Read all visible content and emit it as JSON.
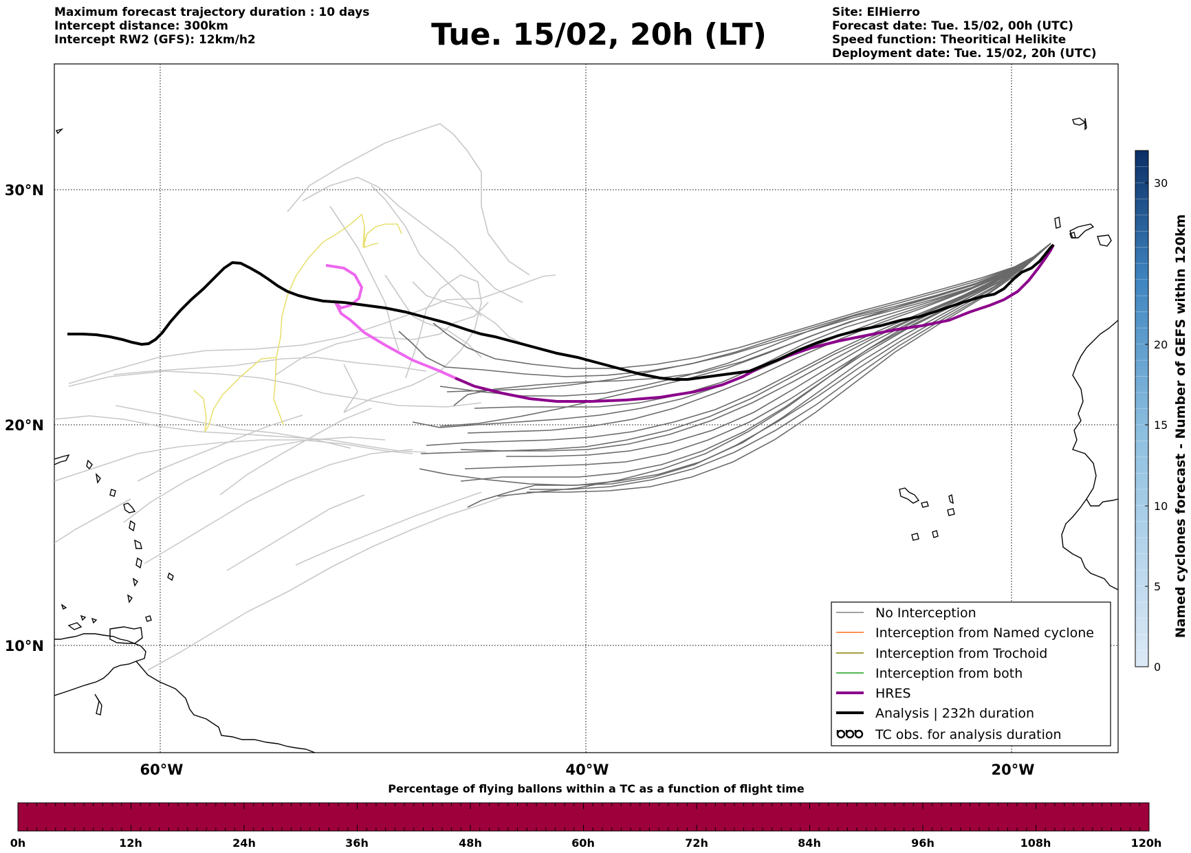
{
  "header": {
    "left_lines": [
      "Maximum forecast trajectory duration : 10 days",
      "Intercept distance: 300km",
      "Intercept RW2 (GFS):  12km/h2"
    ],
    "title": "Tue. 15/02, 20h (LT)",
    "right_lines": [
      "Site: ElHierro",
      "Forecast date: Tue. 15/02, 00h (UTC)",
      "Speed function: Theoritical Helikite",
      "Deployment date: Tue. 15/02, 20h (UTC)"
    ]
  },
  "map": {
    "lon_labels": [
      "60°W",
      "40°W",
      "20°W"
    ],
    "lat_labels": [
      "30°N",
      "20°N",
      "10°N"
    ]
  },
  "legend": {
    "items": [
      {
        "label": "No Interception",
        "color": "#808080",
        "style": "thin"
      },
      {
        "label": "Interception from Named cyclone",
        "color": "#ff6a1a",
        "style": "thin"
      },
      {
        "label": "Interception from Trochoid",
        "color": "#808000",
        "style": "thin"
      },
      {
        "label": "Interception from both",
        "color": "#1aa01a",
        "style": "thin"
      },
      {
        "label": "HRES",
        "color": "#8b008b",
        "style": "thick"
      },
      {
        "label": "Analysis | 232h duration",
        "color": "#000000",
        "style": "thick"
      },
      {
        "label": "TC obs. for analysis duration",
        "color": "#000000",
        "style": "symbol"
      }
    ]
  },
  "colorbar": {
    "label": "Named cyclones forecast - Number of GEFS within 120km",
    "ticks": [
      "0",
      "5",
      "10",
      "15",
      "20",
      "30"
    ],
    "top_color": "#0b2f66",
    "bottom_color": "#dce9f6"
  },
  "timebar": {
    "title": "Percentage of flying ballons within a TC as a function of flight time",
    "ticks": [
      "0h",
      "12h",
      "24h",
      "36h",
      "48h",
      "60h",
      "72h",
      "84h",
      "96h",
      "108h",
      "120h"
    ],
    "fill_color": "#9e003c"
  },
  "colors": {
    "ensemble": "#696969",
    "outer_ensemble": "#c8c8c8",
    "yellow_track": "#e8e070",
    "hres": "#8b008b",
    "hres_light": "#ee66ee",
    "analysis": "#000000"
  }
}
